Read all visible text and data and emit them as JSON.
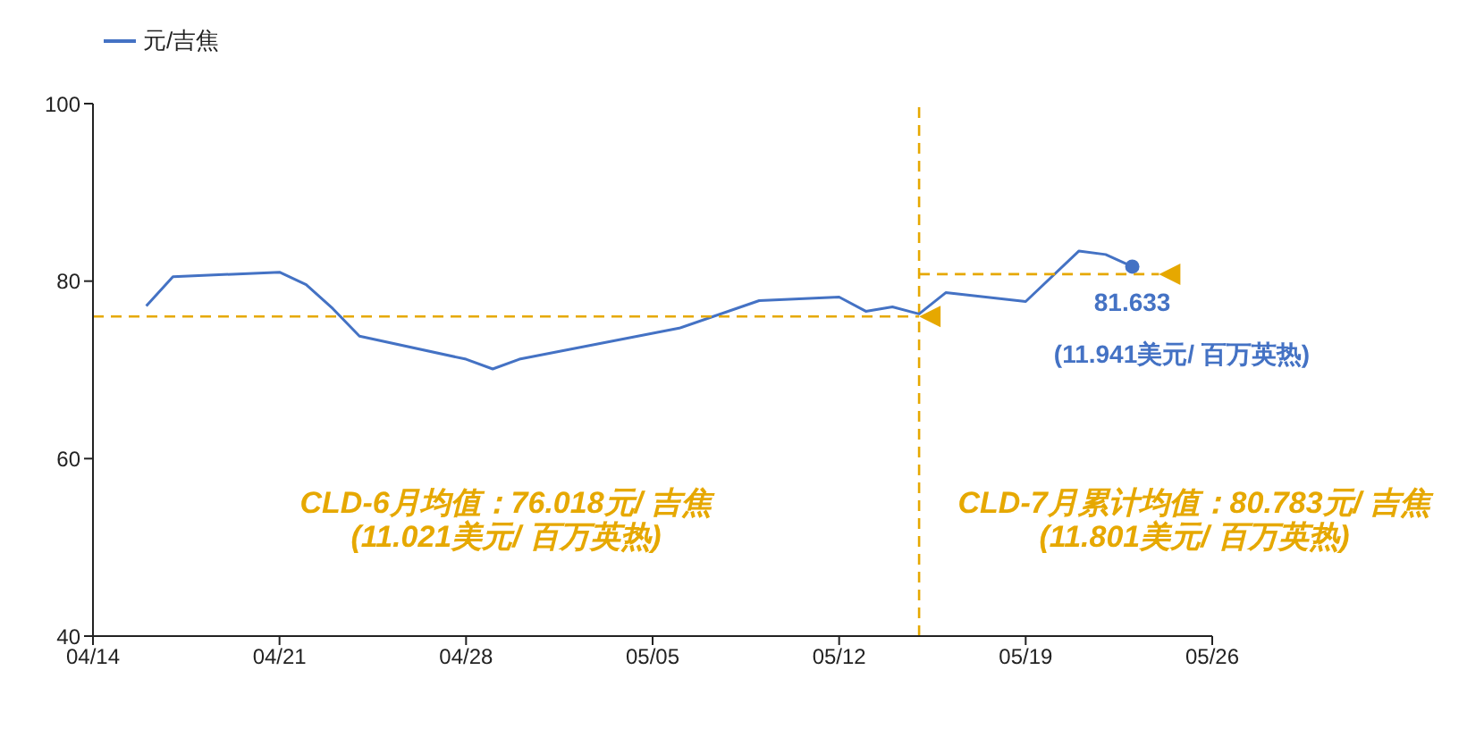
{
  "chart_data": {
    "type": "line",
    "x": [
      "--04-16",
      "--04-17",
      "--04-21",
      "--04-22",
      "--04-23",
      "--04-24",
      "--04-28",
      "--04-29",
      "--04-30",
      "--05-06",
      "--05-09",
      "--05-12",
      "--05-13",
      "--05-14",
      "--05-15",
      "--05-16",
      "--05-19",
      "--05-21",
      "--05-22",
      "--05-23"
    ],
    "series": [
      {
        "name": "元/吉焦",
        "color": "#4472c4",
        "values": [
          77.2,
          80.5,
          81.0,
          79.6,
          76.9,
          73.8,
          71.2,
          70.1,
          71.2,
          74.7,
          77.8,
          78.2,
          76.6,
          77.1,
          76.3,
          78.7,
          77.7,
          83.4,
          83.0,
          81.633
        ],
        "marker": "none",
        "line_style": "solid"
      },
      {
        "type": "scatter",
        "color": "#4472c4",
        "x": [
          "--05-23"
        ],
        "values": [
          81.633
        ],
        "marker": "circle"
      },
      {
        "color": "#e6a800",
        "x": [
          "--04-14",
          "--05-15"
        ],
        "values": [
          76.018,
          76.018
        ],
        "line_style": "dashed"
      },
      {
        "color": "#e6a800",
        "x": [
          "--05-15",
          "--05-24"
        ],
        "values": [
          80.783,
          80.783
        ],
        "line_style": "dashed"
      }
    ],
    "ref_lines": [
      {
        "axis": "x",
        "value": "--05-15",
        "color": "#e6a800",
        "line_style": "dashed"
      }
    ],
    "annotations": [
      "CLD-6月均值：76.018元/ 吉焦\n(11.021美元/ 百万英热)",
      "CLD-7月累计均值：80.783元/ 吉焦\n(11.801美元/ 百万英热)",
      {
        "text": "81.633",
        "x": "--05-23",
        "y": 81.633
      },
      "(11.941美元/ 百万英热)"
    ],
    "xlim": [
      "--04-14",
      "--05-26"
    ],
    "xticks": [
      {
        "value": "--04-14",
        "label": "04/14"
      },
      {
        "value": "--04-21",
        "label": "04/21"
      },
      {
        "value": "--04-28",
        "label": "04/28"
      },
      {
        "value": "--05-05",
        "label": "05/05"
      },
      {
        "value": "--05-12",
        "label": "05/12"
      },
      {
        "value": "--05-19",
        "label": "05/19"
      },
      {
        "value": "--05-26",
        "label": "05/26"
      }
    ],
    "ylim": [
      40,
      100
    ],
    "yticks": [
      40,
      60,
      80,
      100
    ],
    "grid": false,
    "legend": "top left"
  }
}
